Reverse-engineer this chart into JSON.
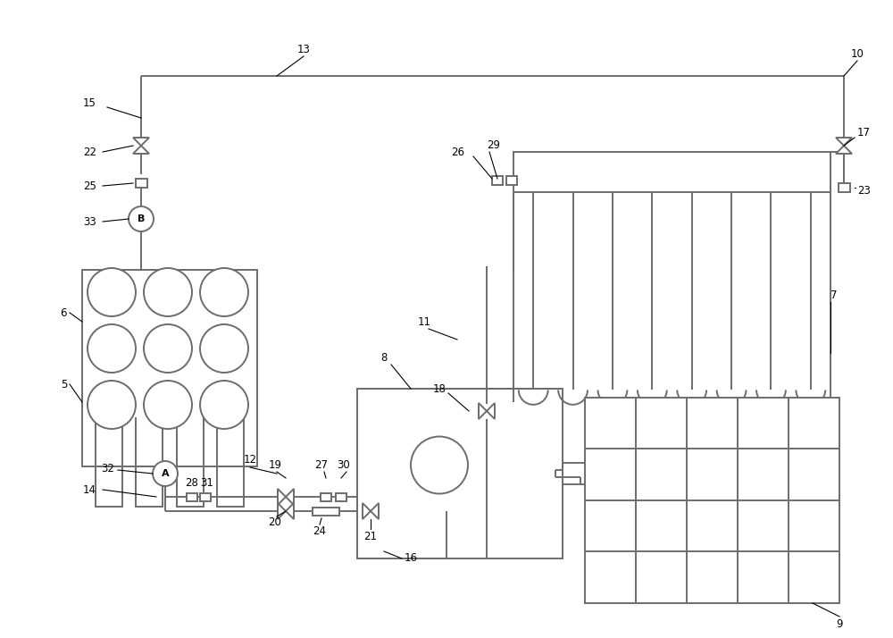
{
  "bg": "#ffffff",
  "lc": "#6d6d6d",
  "lw": 1.4,
  "fs": 8.5,
  "fig_w": 10.0,
  "fig_h": 7.14,
  "dpi": 100
}
